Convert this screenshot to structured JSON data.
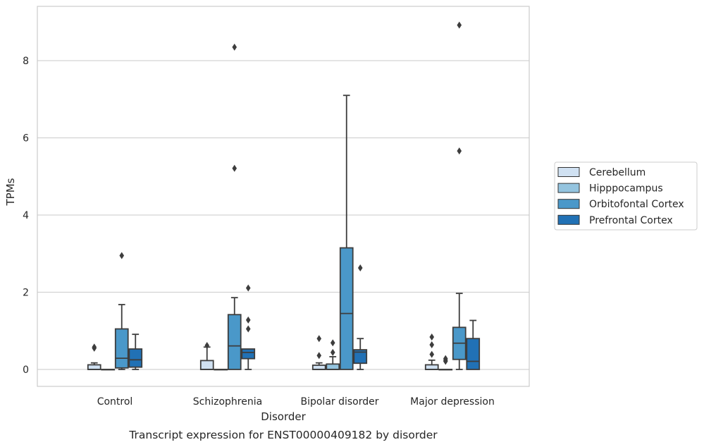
{
  "chart_data": {
    "type": "box",
    "xlabel": "Disorder",
    "ylabel": "TPMs",
    "caption": "Transcript expression for ENST00000409182 by disorder",
    "ylim": [
      -0.42,
      9.3
    ],
    "yticks": [
      0,
      2,
      4,
      6,
      8
    ],
    "grid": "horizontal",
    "legend_position": "right",
    "categories": [
      "Control",
      "Schizophrenia",
      "Bipolar disorder",
      "Major depression"
    ],
    "series": [
      {
        "name": "Cerebellum",
        "color": "#d0e1f2",
        "boxes": [
          {
            "q1": 0.0,
            "median": 0.0,
            "q3": 0.12,
            "whisker_low": 0.0,
            "whisker_high": 0.17,
            "outliers": [
              0.55,
              0.58
            ]
          },
          {
            "q1": 0.0,
            "median": 0.0,
            "q3": 0.23,
            "whisker_low": 0.0,
            "whisker_high": 0.58,
            "outliers": [
              0.62
            ]
          },
          {
            "q1": 0.0,
            "median": 0.0,
            "q3": 0.11,
            "whisker_low": 0.0,
            "whisker_high": 0.17,
            "outliers": [
              0.36,
              0.8
            ]
          },
          {
            "q1": 0.0,
            "median": 0.0,
            "q3": 0.12,
            "whisker_low": 0.0,
            "whisker_high": 0.24,
            "outliers": [
              0.39,
              0.64,
              0.84
            ]
          }
        ]
      },
      {
        "name": "Hipppocampus",
        "color": "#94c4df",
        "boxes": [
          {
            "q1": 0.0,
            "median": 0.0,
            "q3": 0.0,
            "whisker_low": 0.0,
            "whisker_high": 0.0,
            "outliers": []
          },
          {
            "q1": 0.0,
            "median": 0.0,
            "q3": 0.0,
            "whisker_low": 0.0,
            "whisker_high": 0.0,
            "outliers": []
          },
          {
            "q1": 0.0,
            "median": 0.0,
            "q3": 0.14,
            "whisker_low": 0.0,
            "whisker_high": 0.33,
            "outliers": [
              0.44,
              0.69
            ]
          },
          {
            "q1": 0.0,
            "median": 0.0,
            "q3": 0.0,
            "whisker_low": 0.0,
            "whisker_high": 0.0,
            "outliers": [
              0.21,
              0.24,
              0.28
            ]
          }
        ]
      },
      {
        "name": "Orbitofontal Cortex",
        "color": "#4a98c9",
        "boxes": [
          {
            "q1": 0.04,
            "median": 0.29,
            "q3": 1.05,
            "whisker_low": 0.0,
            "whisker_high": 1.68,
            "outliers": [
              2.95
            ]
          },
          {
            "q1": 0.0,
            "median": 0.61,
            "q3": 1.42,
            "whisker_low": 0.0,
            "whisker_high": 1.86,
            "outliers": [
              5.21,
              8.35
            ]
          },
          {
            "q1": 0.0,
            "median": 1.45,
            "q3": 3.15,
            "whisker_low": 0.0,
            "whisker_high": 7.1,
            "outliers": []
          },
          {
            "q1": 0.26,
            "median": 0.68,
            "q3": 1.09,
            "whisker_low": 0.0,
            "whisker_high": 1.97,
            "outliers": [
              5.66,
              8.92
            ]
          }
        ]
      },
      {
        "name": "Prefrontal Cortex",
        "color": "#2171b5",
        "boxes": [
          {
            "q1": 0.06,
            "median": 0.25,
            "q3": 0.53,
            "whisker_low": 0.0,
            "whisker_high": 0.91,
            "outliers": []
          },
          {
            "q1": 0.28,
            "median": 0.44,
            "q3": 0.53,
            "whisker_low": 0.0,
            "whisker_high": 0.53,
            "outliers": [
              1.05,
              1.28,
              2.11
            ]
          },
          {
            "q1": 0.16,
            "median": 0.45,
            "q3": 0.51,
            "whisker_low": 0.0,
            "whisker_high": 0.8,
            "outliers": [
              2.63
            ]
          },
          {
            "q1": 0.0,
            "median": 0.21,
            "q3": 0.8,
            "whisker_low": 0.0,
            "whisker_high": 1.27,
            "outliers": []
          }
        ]
      }
    ]
  }
}
